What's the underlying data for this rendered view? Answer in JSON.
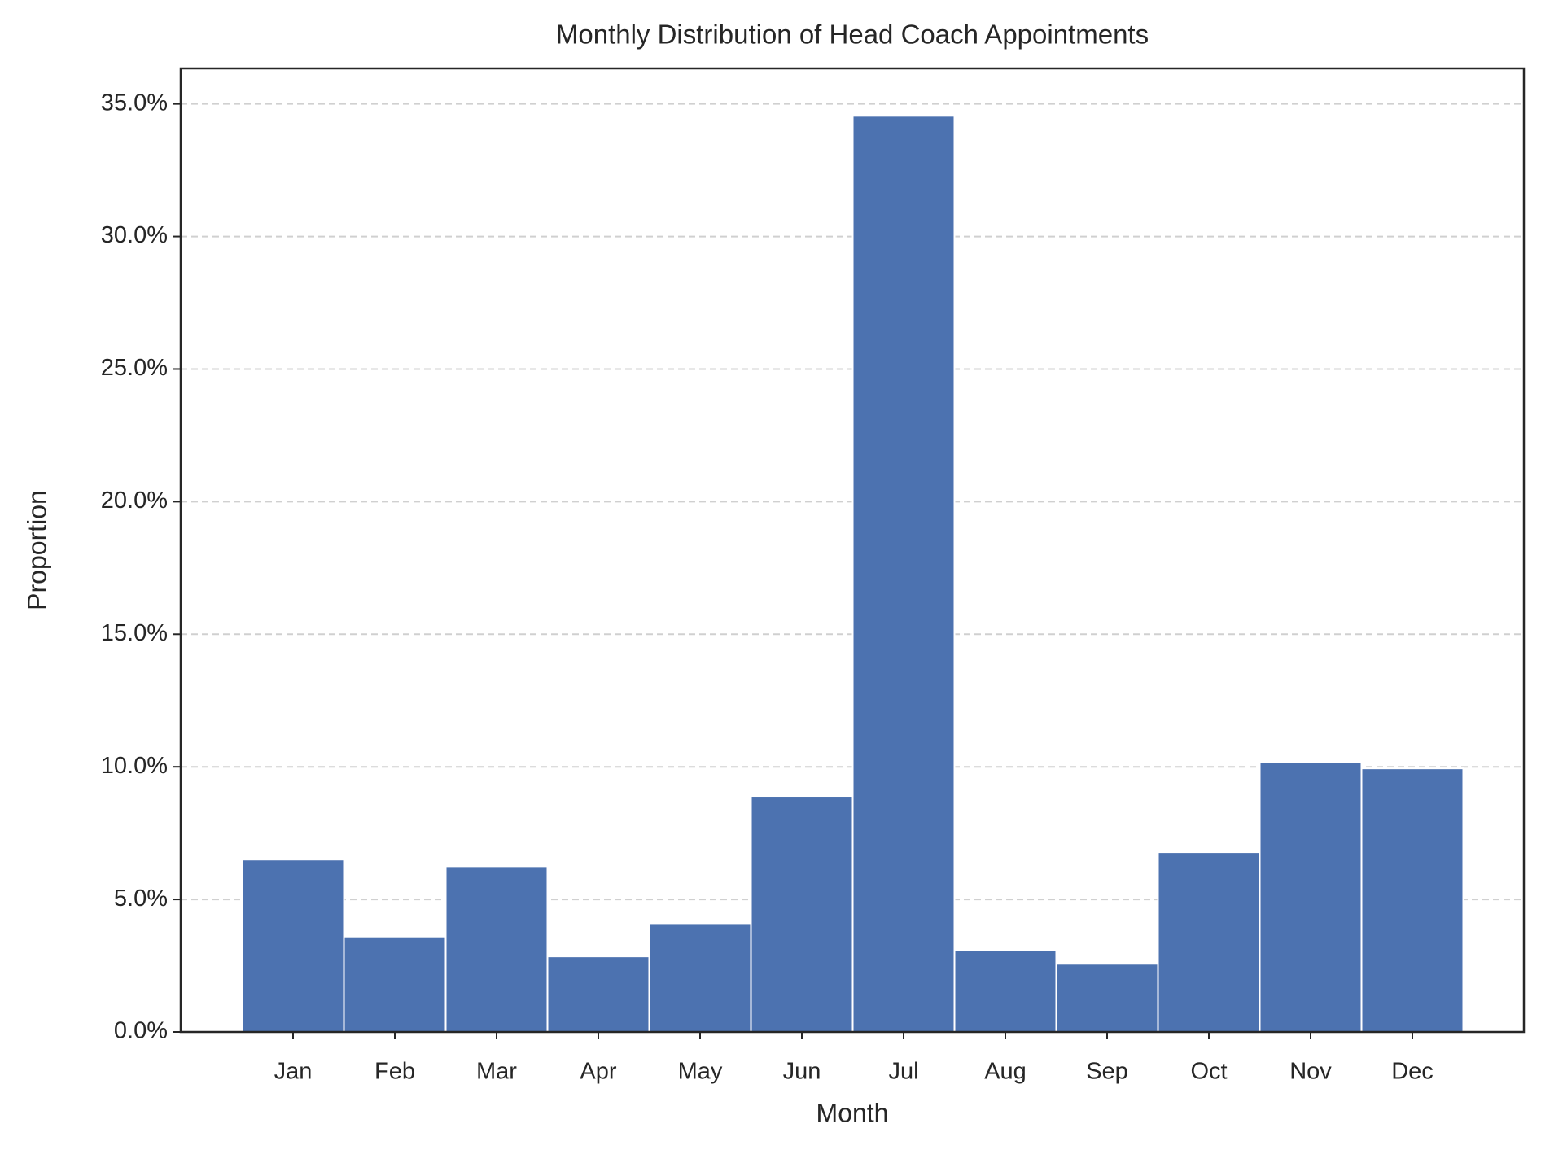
{
  "chart_data": {
    "type": "bar",
    "title": "Monthly Distribution of Head Coach Appointments",
    "x_label": "Month",
    "y_label": "Proportion",
    "categories": [
      "Jan",
      "Feb",
      "Mar",
      "Apr",
      "May",
      "Jun",
      "Jul",
      "Aug",
      "Sep",
      "Oct",
      "Nov",
      "Dec"
    ],
    "values": [
      6.5,
      3.6,
      6.25,
      2.85,
      4.1,
      8.9,
      34.55,
      3.1,
      2.57,
      6.78,
      10.16,
      9.94
    ],
    "color": "#4c72b0",
    "ylim": [
      0,
      36.34
    ],
    "yticks": [
      {
        "value": 0,
        "label": "0.0%"
      },
      {
        "value": 5,
        "label": "5.0%"
      },
      {
        "value": 10,
        "label": "10.0%"
      },
      {
        "value": 15,
        "label": "15.0%"
      },
      {
        "value": 20,
        "label": "20.0%"
      },
      {
        "value": 25,
        "label": "25.0%"
      },
      {
        "value": 30,
        "label": "30.0%"
      },
      {
        "value": 35,
        "label": "35.0%"
      }
    ],
    "grid": true
  }
}
